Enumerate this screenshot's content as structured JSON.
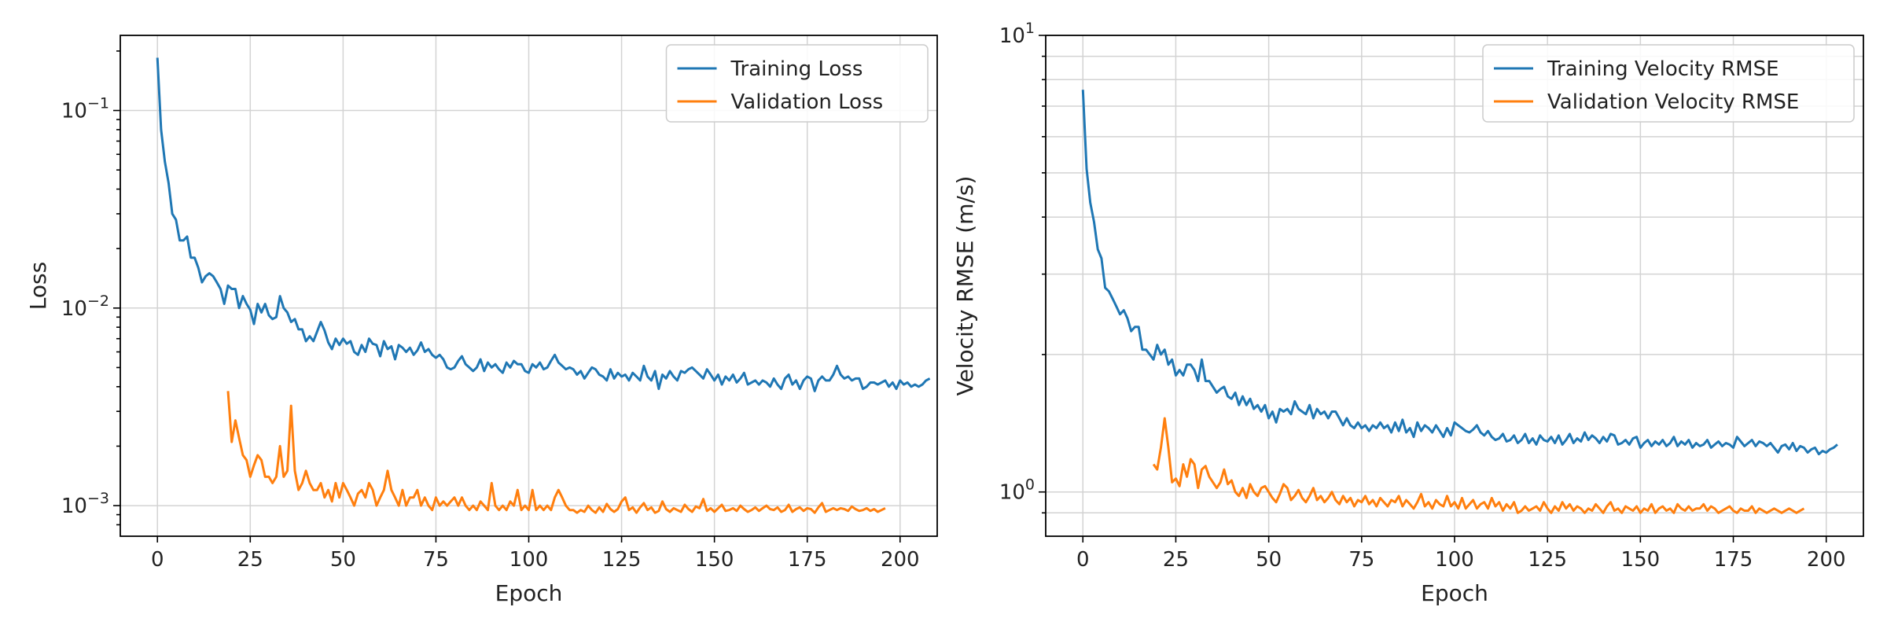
{
  "colors": {
    "train": "#1f77b4",
    "val": "#ff7f0e"
  },
  "chart_data": [
    {
      "type": "line",
      "xlabel": "Epoch",
      "ylabel": "Loss",
      "yscale": "log",
      "xlim": [
        -10,
        210
      ],
      "ylim": [
        0.0007,
        0.24
      ],
      "xticks": [
        0,
        25,
        50,
        75,
        100,
        125,
        150,
        175,
        200
      ],
      "yticks": [
        {
          "value": 0.1,
          "base": "10",
          "exp": "−1"
        },
        {
          "value": 0.01,
          "base": "10",
          "exp": "−2"
        },
        {
          "value": 0.001,
          "base": "10",
          "exp": "−3"
        }
      ],
      "grid": true,
      "legend": "top-right",
      "series": [
        {
          "name": "Training Loss",
          "color": "#1f77b4",
          "x_start": 0,
          "values": [
            0.185,
            0.08,
            0.055,
            0.043,
            0.03,
            0.028,
            0.022,
            0.022,
            0.023,
            0.018,
            0.018,
            0.016,
            0.0135,
            0.0145,
            0.015,
            0.0145,
            0.0135,
            0.0125,
            0.0105,
            0.013,
            0.0125,
            0.0125,
            0.01,
            0.0115,
            0.0105,
            0.0098,
            0.0083,
            0.0105,
            0.0095,
            0.0105,
            0.0092,
            0.0088,
            0.009,
            0.0115,
            0.01,
            0.0095,
            0.0085,
            0.0088,
            0.0078,
            0.0078,
            0.0068,
            0.0072,
            0.0068,
            0.0076,
            0.0085,
            0.0077,
            0.0067,
            0.0062,
            0.007,
            0.0065,
            0.007,
            0.0066,
            0.0068,
            0.006,
            0.0058,
            0.0065,
            0.006,
            0.007,
            0.0066,
            0.0065,
            0.0057,
            0.0068,
            0.0062,
            0.0064,
            0.0055,
            0.0065,
            0.0063,
            0.006,
            0.0063,
            0.0058,
            0.0061,
            0.0067,
            0.006,
            0.0062,
            0.0058,
            0.0056,
            0.0058,
            0.0055,
            0.005,
            0.0049,
            0.005,
            0.0054,
            0.0057,
            0.0052,
            0.005,
            0.0048,
            0.005,
            0.0055,
            0.0048,
            0.0053,
            0.005,
            0.0052,
            0.0049,
            0.0047,
            0.0053,
            0.005,
            0.0054,
            0.0052,
            0.0052,
            0.0048,
            0.0047,
            0.0052,
            0.005,
            0.0053,
            0.0049,
            0.005,
            0.0054,
            0.0058,
            0.0053,
            0.0051,
            0.0049,
            0.005,
            0.0049,
            0.0046,
            0.0048,
            0.0044,
            0.0047,
            0.005,
            0.0049,
            0.0046,
            0.0045,
            0.0043,
            0.0049,
            0.0044,
            0.0047,
            0.0045,
            0.0046,
            0.0043,
            0.0047,
            0.0045,
            0.0043,
            0.0051,
            0.0045,
            0.0043,
            0.0048,
            0.0039,
            0.0046,
            0.0044,
            0.0048,
            0.0045,
            0.0043,
            0.0048,
            0.0047,
            0.0049,
            0.005,
            0.0048,
            0.0046,
            0.0044,
            0.0049,
            0.0046,
            0.0043,
            0.0046,
            0.0041,
            0.0045,
            0.0043,
            0.0046,
            0.0042,
            0.0044,
            0.0047,
            0.0041,
            0.0042,
            0.0043,
            0.0041,
            0.0043,
            0.0042,
            0.004,
            0.0044,
            0.0041,
            0.0039,
            0.0044,
            0.0046,
            0.0041,
            0.0043,
            0.0039,
            0.0043,
            0.0045,
            0.0044,
            0.0038,
            0.0043,
            0.0045,
            0.0043,
            0.0043,
            0.0046,
            0.0051,
            0.0046,
            0.0044,
            0.0045,
            0.0043,
            0.0044,
            0.0044,
            0.0039,
            0.004,
            0.0042,
            0.0042,
            0.0041,
            0.0042,
            0.0043,
            0.004,
            0.0042,
            0.0039,
            0.0043,
            0.0041,
            0.0042,
            0.004,
            0.0041,
            0.004,
            0.0041,
            0.0043,
            0.0044
          ]
        },
        {
          "name": "Validation Loss",
          "color": "#ff7f0e",
          "x_start": 19,
          "values": [
            0.0038,
            0.0021,
            0.0027,
            0.0022,
            0.0018,
            0.0017,
            0.0014,
            0.0016,
            0.0018,
            0.0017,
            0.0014,
            0.0014,
            0.0013,
            0.0014,
            0.002,
            0.0014,
            0.0015,
            0.0032,
            0.0015,
            0.0012,
            0.0013,
            0.0015,
            0.0013,
            0.0012,
            0.0012,
            0.0013,
            0.0011,
            0.0012,
            0.00105,
            0.0013,
            0.0011,
            0.0013,
            0.0012,
            0.0011,
            0.001,
            0.00115,
            0.0012,
            0.0011,
            0.0013,
            0.0012,
            0.001,
            0.0011,
            0.0012,
            0.0015,
            0.0012,
            0.0011,
            0.001,
            0.0012,
            0.001,
            0.0011,
            0.0011,
            0.0012,
            0.001,
            0.0011,
            0.001,
            0.00095,
            0.0011,
            0.001,
            0.00105,
            0.001,
            0.00105,
            0.0011,
            0.001,
            0.0011,
            0.001,
            0.00095,
            0.001,
            0.00095,
            0.00105,
            0.001,
            0.00095,
            0.0013,
            0.001,
            0.00095,
            0.001,
            0.00095,
            0.00105,
            0.001,
            0.0012,
            0.00095,
            0.001,
            0.00095,
            0.0012,
            0.00095,
            0.001,
            0.00095,
            0.001,
            0.00095,
            0.0011,
            0.0012,
            0.0011,
            0.001,
            0.00095,
            0.00095,
            0.00092,
            0.00095,
            0.00093,
            0.001,
            0.00095,
            0.00092,
            0.00098,
            0.00093,
            0.00102,
            0.00096,
            0.00093,
            0.00096,
            0.00105,
            0.0011,
            0.00095,
            0.00098,
            0.00092,
            0.00098,
            0.00103,
            0.00095,
            0.00098,
            0.00092,
            0.00094,
            0.00105,
            0.00096,
            0.00093,
            0.00097,
            0.00095,
            0.00093,
            0.00101,
            0.00096,
            0.00093,
            0.00099,
            0.00097,
            0.00108,
            0.00094,
            0.00097,
            0.00093,
            0.00097,
            0.00101,
            0.00094,
            0.00095,
            0.00097,
            0.00094,
            0.001,
            0.00096,
            0.00093,
            0.00095,
            0.00098,
            0.00094,
            0.00097,
            0.001,
            0.00096,
            0.00095,
            0.00098,
            0.00093,
            0.00095,
            0.00101,
            0.00093,
            0.00096,
            0.00098,
            0.00094,
            0.00097,
            0.00096,
            0.00092,
            0.00098,
            0.00103,
            0.00093,
            0.00095,
            0.00097,
            0.00095,
            0.00097,
            0.00096,
            0.00094,
            0.00099,
            0.00096,
            0.00094,
            0.00095,
            0.00097,
            0.00094,
            0.00096,
            0.00093,
            0.00095,
            0.00097
          ]
        }
      ]
    },
    {
      "type": "line",
      "xlabel": "Epoch",
      "ylabel": "Velocity RMSE (m/s)",
      "yscale": "log",
      "xlim": [
        -10,
        210
      ],
      "ylim": [
        0.8,
        10
      ],
      "xticks": [
        0,
        25,
        50,
        75,
        100,
        125,
        150,
        175,
        200
      ],
      "yticks": [
        {
          "value": 10,
          "base": "10",
          "exp": "1"
        },
        {
          "value": 1,
          "base": "10",
          "exp": "0"
        }
      ],
      "minor_yticks": [
        2,
        3,
        4,
        5,
        6,
        7,
        8,
        9
      ],
      "grid": true,
      "legend": "top-right",
      "series": [
        {
          "name": "Training Velocity RMSE",
          "color": "#1f77b4",
          "x_start": 0,
          "values": [
            7.6,
            5.1,
            4.3,
            3.9,
            3.4,
            3.25,
            2.8,
            2.75,
            2.65,
            2.55,
            2.45,
            2.5,
            2.4,
            2.25,
            2.3,
            2.3,
            2.05,
            2.05,
            2.0,
            1.95,
            2.1,
            2.0,
            2.05,
            1.9,
            1.95,
            1.8,
            1.85,
            1.8,
            1.9,
            1.9,
            1.85,
            1.75,
            1.95,
            1.75,
            1.75,
            1.7,
            1.65,
            1.68,
            1.7,
            1.62,
            1.6,
            1.65,
            1.55,
            1.62,
            1.55,
            1.6,
            1.52,
            1.55,
            1.5,
            1.55,
            1.45,
            1.5,
            1.42,
            1.52,
            1.5,
            1.52,
            1.48,
            1.58,
            1.52,
            1.5,
            1.48,
            1.55,
            1.45,
            1.52,
            1.48,
            1.5,
            1.45,
            1.5,
            1.5,
            1.45,
            1.4,
            1.45,
            1.4,
            1.38,
            1.42,
            1.38,
            1.4,
            1.36,
            1.4,
            1.38,
            1.42,
            1.38,
            1.4,
            1.35,
            1.42,
            1.36,
            1.44,
            1.35,
            1.38,
            1.32,
            1.42,
            1.36,
            1.4,
            1.38,
            1.35,
            1.4,
            1.36,
            1.32,
            1.38,
            1.33,
            1.42,
            1.4,
            1.38,
            1.36,
            1.35,
            1.37,
            1.4,
            1.35,
            1.33,
            1.36,
            1.32,
            1.3,
            1.31,
            1.34,
            1.29,
            1.3,
            1.33,
            1.28,
            1.3,
            1.34,
            1.28,
            1.31,
            1.27,
            1.33,
            1.3,
            1.29,
            1.32,
            1.28,
            1.33,
            1.27,
            1.3,
            1.34,
            1.28,
            1.31,
            1.29,
            1.35,
            1.3,
            1.33,
            1.31,
            1.28,
            1.32,
            1.29,
            1.34,
            1.33,
            1.27,
            1.28,
            1.3,
            1.27,
            1.31,
            1.32,
            1.25,
            1.28,
            1.3,
            1.26,
            1.29,
            1.27,
            1.3,
            1.26,
            1.28,
            1.32,
            1.26,
            1.29,
            1.27,
            1.3,
            1.25,
            1.28,
            1.26,
            1.27,
            1.3,
            1.25,
            1.27,
            1.29,
            1.26,
            1.28,
            1.27,
            1.25,
            1.32,
            1.29,
            1.26,
            1.28,
            1.3,
            1.26,
            1.29,
            1.28,
            1.26,
            1.28,
            1.25,
            1.22,
            1.26,
            1.27,
            1.24,
            1.28,
            1.23,
            1.26,
            1.25,
            1.22,
            1.24,
            1.25,
            1.21,
            1.23,
            1.22,
            1.24,
            1.25,
            1.27
          ]
        },
        {
          "name": "Validation Velocity RMSE",
          "color": "#ff7f0e",
          "x_start": 19,
          "values": [
            1.15,
            1.12,
            1.25,
            1.45,
            1.25,
            1.05,
            1.07,
            1.03,
            1.15,
            1.08,
            1.18,
            1.15,
            1.02,
            1.12,
            1.14,
            1.08,
            1.05,
            1.02,
            1.05,
            1.12,
            1.04,
            1.06,
            1.0,
            0.98,
            1.02,
            0.97,
            1.04,
            1.0,
            0.98,
            1.02,
            1.03,
            1.0,
            0.97,
            0.95,
            0.99,
            1.04,
            1.02,
            0.96,
            0.98,
            1.01,
            0.97,
            0.95,
            0.98,
            1.02,
            0.96,
            0.98,
            0.95,
            0.97,
            1.0,
            0.96,
            0.94,
            0.98,
            0.95,
            0.97,
            0.93,
            0.96,
            0.95,
            0.98,
            0.94,
            0.96,
            0.93,
            0.97,
            0.95,
            0.93,
            0.96,
            0.95,
            0.98,
            0.93,
            0.96,
            0.94,
            0.92,
            0.95,
            0.99,
            0.93,
            0.95,
            0.92,
            0.96,
            0.94,
            0.93,
            0.98,
            0.93,
            0.95,
            0.92,
            0.97,
            0.92,
            0.94,
            0.96,
            0.92,
            0.94,
            0.95,
            0.92,
            0.97,
            0.93,
            0.95,
            0.91,
            0.94,
            0.92,
            0.95,
            0.9,
            0.91,
            0.93,
            0.91,
            0.92,
            0.93,
            0.91,
            0.95,
            0.92,
            0.9,
            0.93,
            0.91,
            0.95,
            0.92,
            0.94,
            0.91,
            0.93,
            0.92,
            0.9,
            0.92,
            0.91,
            0.94,
            0.92,
            0.9,
            0.93,
            0.95,
            0.91,
            0.92,
            0.9,
            0.93,
            0.92,
            0.91,
            0.93,
            0.9,
            0.92,
            0.91,
            0.94,
            0.9,
            0.92,
            0.93,
            0.91,
            0.92,
            0.9,
            0.94,
            0.92,
            0.91,
            0.93,
            0.91,
            0.92,
            0.92,
            0.94,
            0.91,
            0.93,
            0.92,
            0.9,
            0.91,
            0.92,
            0.93,
            0.91,
            0.9,
            0.92,
            0.91,
            0.91,
            0.93,
            0.9,
            0.92,
            0.91,
            0.9,
            0.91,
            0.92,
            0.91,
            0.9,
            0.91,
            0.92,
            0.91,
            0.9,
            0.91,
            0.92
          ]
        }
      ]
    }
  ]
}
